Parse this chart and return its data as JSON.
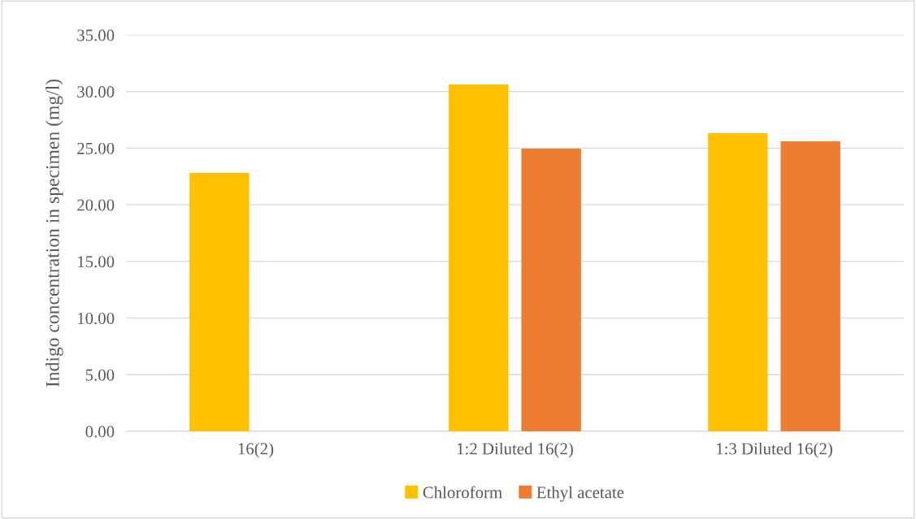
{
  "chart_data": {
    "type": "bar",
    "ylabel": "Indigo concentration in specimen (mg/l)",
    "categories": [
      "16(2)",
      "1:2 Diluted 16(2)",
      "1:3 Diluted 16(2)"
    ],
    "series": [
      {
        "name": "Chloroform",
        "color": "#ffc000",
        "values": [
          22.81,
          30.63,
          26.33
        ]
      },
      {
        "name": "Ethyl acetate",
        "color": "#ed7d31",
        "values": [
          null,
          24.96,
          25.61
        ]
      }
    ],
    "ylim": [
      0,
      35
    ],
    "yticks": [
      {
        "value": 0,
        "label": "0.00"
      },
      {
        "value": 5,
        "label": "5.00"
      },
      {
        "value": 10,
        "label": "10.00"
      },
      {
        "value": 15,
        "label": "15.00"
      },
      {
        "value": 20,
        "label": "20.00"
      },
      {
        "value": 25,
        "label": "25.00"
      },
      {
        "value": 30,
        "label": "30.00"
      },
      {
        "value": 35,
        "label": "35.00"
      }
    ],
    "grid": "y",
    "legend": "bottom"
  }
}
